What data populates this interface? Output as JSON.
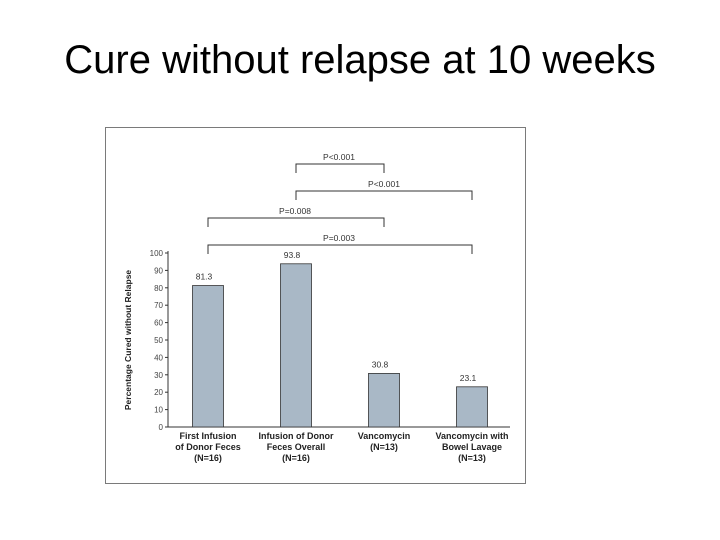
{
  "slide": {
    "title": "Cure without relapse at 10 weeks"
  },
  "chart_data": {
    "type": "bar",
    "title": "",
    "xlabel": "",
    "ylabel": "Percentage Cured without Relapse",
    "ylim": [
      0,
      100
    ],
    "yticks": [
      0,
      10,
      20,
      30,
      40,
      50,
      60,
      70,
      80,
      90,
      100
    ],
    "grid": false,
    "categories": [
      [
        "First Infusion",
        "of Donor Feces",
        "(N=16)"
      ],
      [
        "Infusion of Donor",
        "Feces Overall",
        "(N=16)"
      ],
      [
        "Vancomycin",
        "(N=13)"
      ],
      [
        "Vancomycin with",
        "Bowel Lavage",
        "(N=13)"
      ]
    ],
    "values": [
      81.3,
      93.8,
      30.8,
      23.1
    ],
    "value_labels": [
      "81.3",
      "93.8",
      "30.8",
      "23.1"
    ],
    "bar_color": "#a9b8c6",
    "bar_edge_color": "#333333",
    "comparisons": [
      {
        "from": 1,
        "to": 2,
        "label": "P<0.001"
      },
      {
        "from": 1,
        "to": 3,
        "label": "P<0.001"
      },
      {
        "from": 0,
        "to": 2,
        "label": "P=0.008"
      },
      {
        "from": 0,
        "to": 3,
        "label": "P=0.003"
      }
    ]
  }
}
